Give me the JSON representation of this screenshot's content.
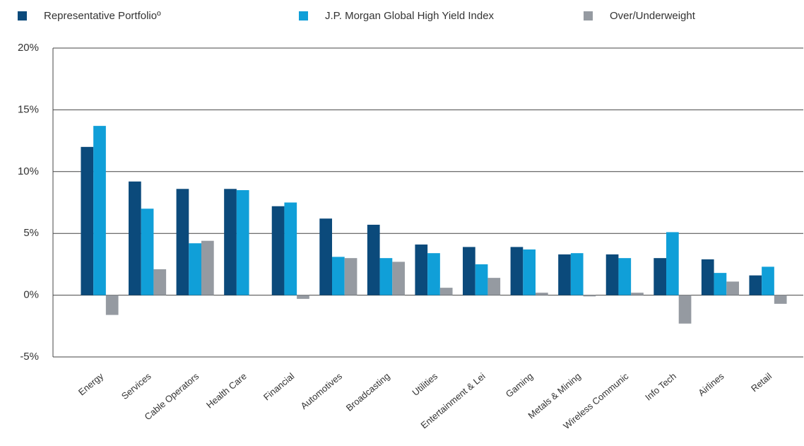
{
  "chart_data": {
    "type": "bar",
    "categories": [
      "Energy",
      "Services",
      "Cable Operators",
      "Health Care",
      "Financial",
      "Automotives",
      "Broadcasting",
      "Utilities",
      "Entertainment & Lei",
      "Gaming",
      "Metals & Mining",
      "Wireless Communic",
      "Info Tech",
      "Airlines",
      "Retail"
    ],
    "series": [
      {
        "name": "Representative Portfolioº",
        "color": "#0b4a7b",
        "values": [
          12.0,
          9.2,
          8.6,
          8.6,
          7.2,
          6.2,
          5.7,
          4.1,
          3.9,
          3.9,
          3.3,
          3.3,
          3.0,
          2.9,
          1.6
        ]
      },
      {
        "name": "J.P. Morgan Global High Yield Index",
        "color": "#109fd8",
        "values": [
          13.7,
          7.0,
          4.2,
          8.5,
          7.5,
          3.1,
          3.0,
          3.4,
          2.5,
          3.7,
          3.4,
          3.0,
          5.1,
          1.8,
          2.3
        ]
      },
      {
        "name": "Over/Underweight",
        "color": "#959aa1",
        "values": [
          -1.6,
          2.1,
          4.4,
          0,
          -0.3,
          3.0,
          2.7,
          0.6,
          1.4,
          0.2,
          -0.1,
          0.2,
          -2.3,
          1.1,
          -0.7
        ]
      }
    ],
    "ylim": [
      -5,
      20
    ],
    "yticks": [
      {
        "value": -5,
        "label": "-5%"
      },
      {
        "value": 0,
        "label": "0%"
      },
      {
        "value": 5,
        "label": "5%"
      },
      {
        "value": 10,
        "label": "10%"
      },
      {
        "value": 15,
        "label": "15%"
      },
      {
        "value": 20,
        "label": "20%"
      }
    ],
    "grid": true,
    "legend": "top"
  }
}
